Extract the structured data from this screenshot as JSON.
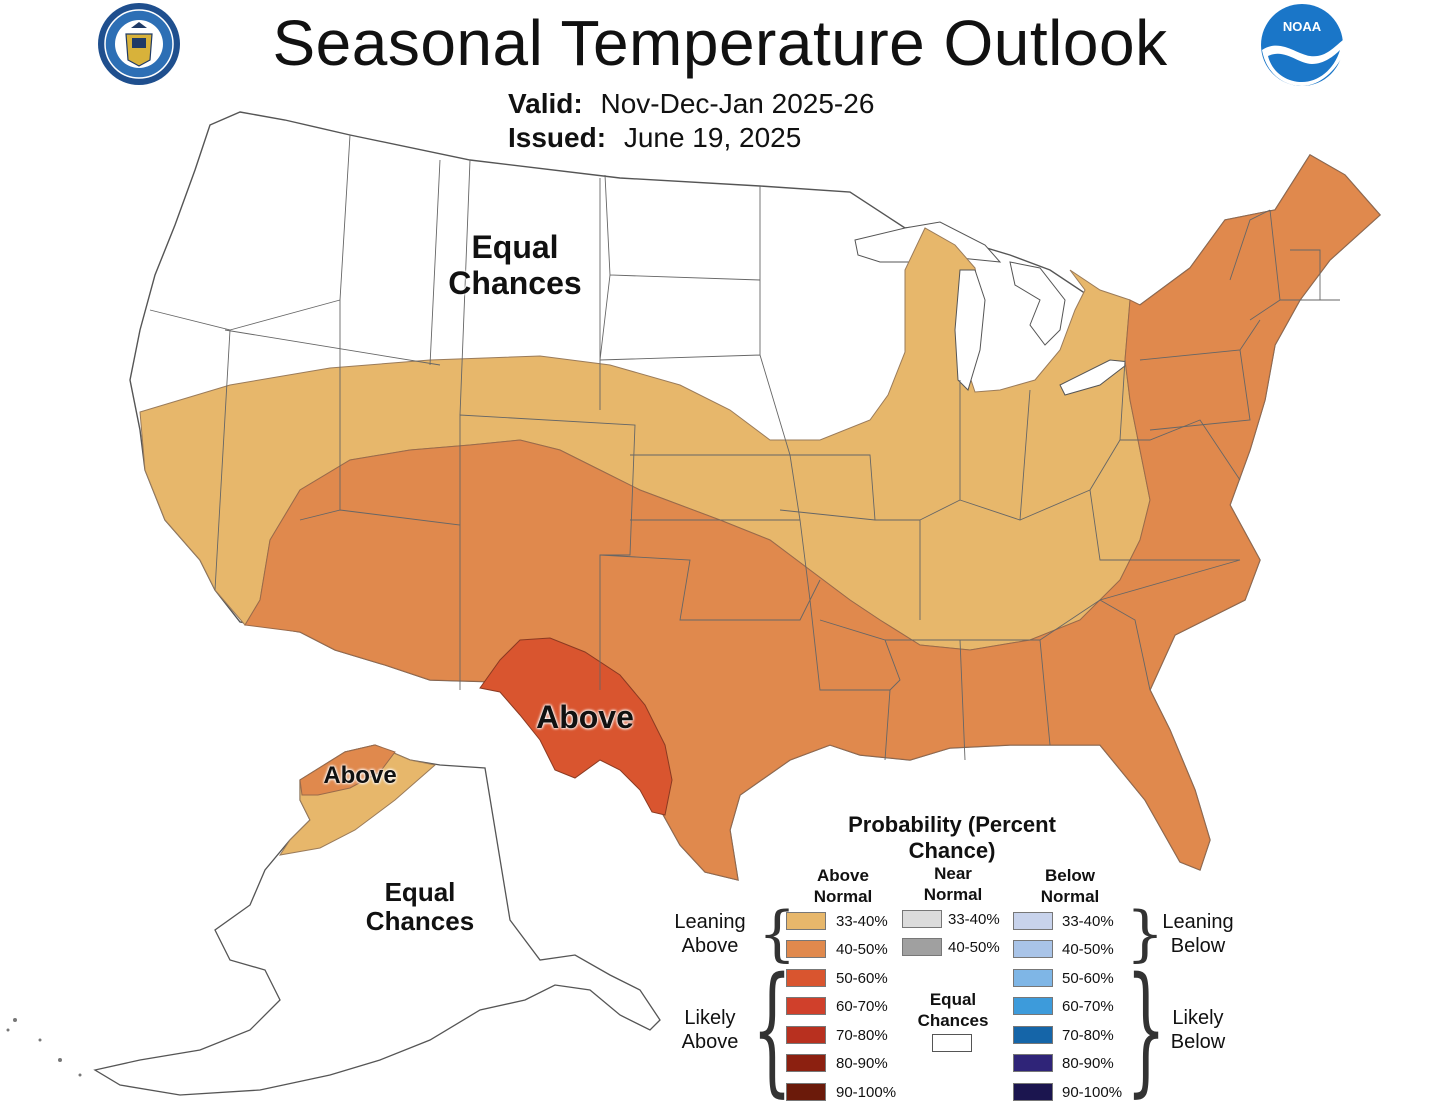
{
  "header": {
    "title": "Seasonal Temperature Outlook",
    "valid_label": "Valid:",
    "valid_value": "Nov-Dec-Jan 2025-26",
    "issued_label": "Issued:",
    "issued_value": "June 19, 2025"
  },
  "logos": {
    "commerce_seal": "department-of-commerce-seal-icon",
    "noaa_logo": "noaa-logo-icon",
    "noaa_text": "NOAA"
  },
  "map_labels": {
    "conus_equal": "Equal Chances",
    "conus_above": "Above",
    "alaska_above": "Above",
    "alaska_equal": "Equal Chances"
  },
  "colors": {
    "above_33_40": "#E7B76B",
    "above_40_50": "#E0894D",
    "above_50_60": "#D9552F",
    "above_60_70": "#D0402B",
    "above_70_80": "#B8301F",
    "above_80_90": "#8C2010",
    "above_90_100": "#6B1A0A",
    "near_33_40": "#DCDCDC",
    "near_40_50": "#A0A0A0",
    "below_33_40": "#C8D3EC",
    "below_40_50": "#A9C4E8",
    "below_50_60": "#7FB6E6",
    "below_60_70": "#3D9BDB",
    "below_70_80": "#1565A8",
    "below_80_90": "#2F2478",
    "below_90_100": "#1B154F",
    "equal_chances": "#FFFFFF"
  },
  "legend": {
    "title": "Probability (Percent Chance)",
    "above_header": "Above Normal",
    "near_header": "Near Normal",
    "below_header": "Below Normal",
    "leaning_above": "Leaning Above",
    "likely_above": "Likely Above",
    "leaning_below": "Leaning Below",
    "likely_below": "Likely Below",
    "equal_chances": "Equal Chances",
    "above_rows": [
      "33-40%",
      "40-50%",
      "50-60%",
      "60-70%",
      "70-80%",
      "80-90%",
      "90-100%"
    ],
    "near_rows": [
      "33-40%",
      "40-50%"
    ],
    "below_rows": [
      "33-40%",
      "40-50%",
      "50-60%",
      "60-70%",
      "70-80%",
      "80-90%",
      "90-100%"
    ]
  }
}
